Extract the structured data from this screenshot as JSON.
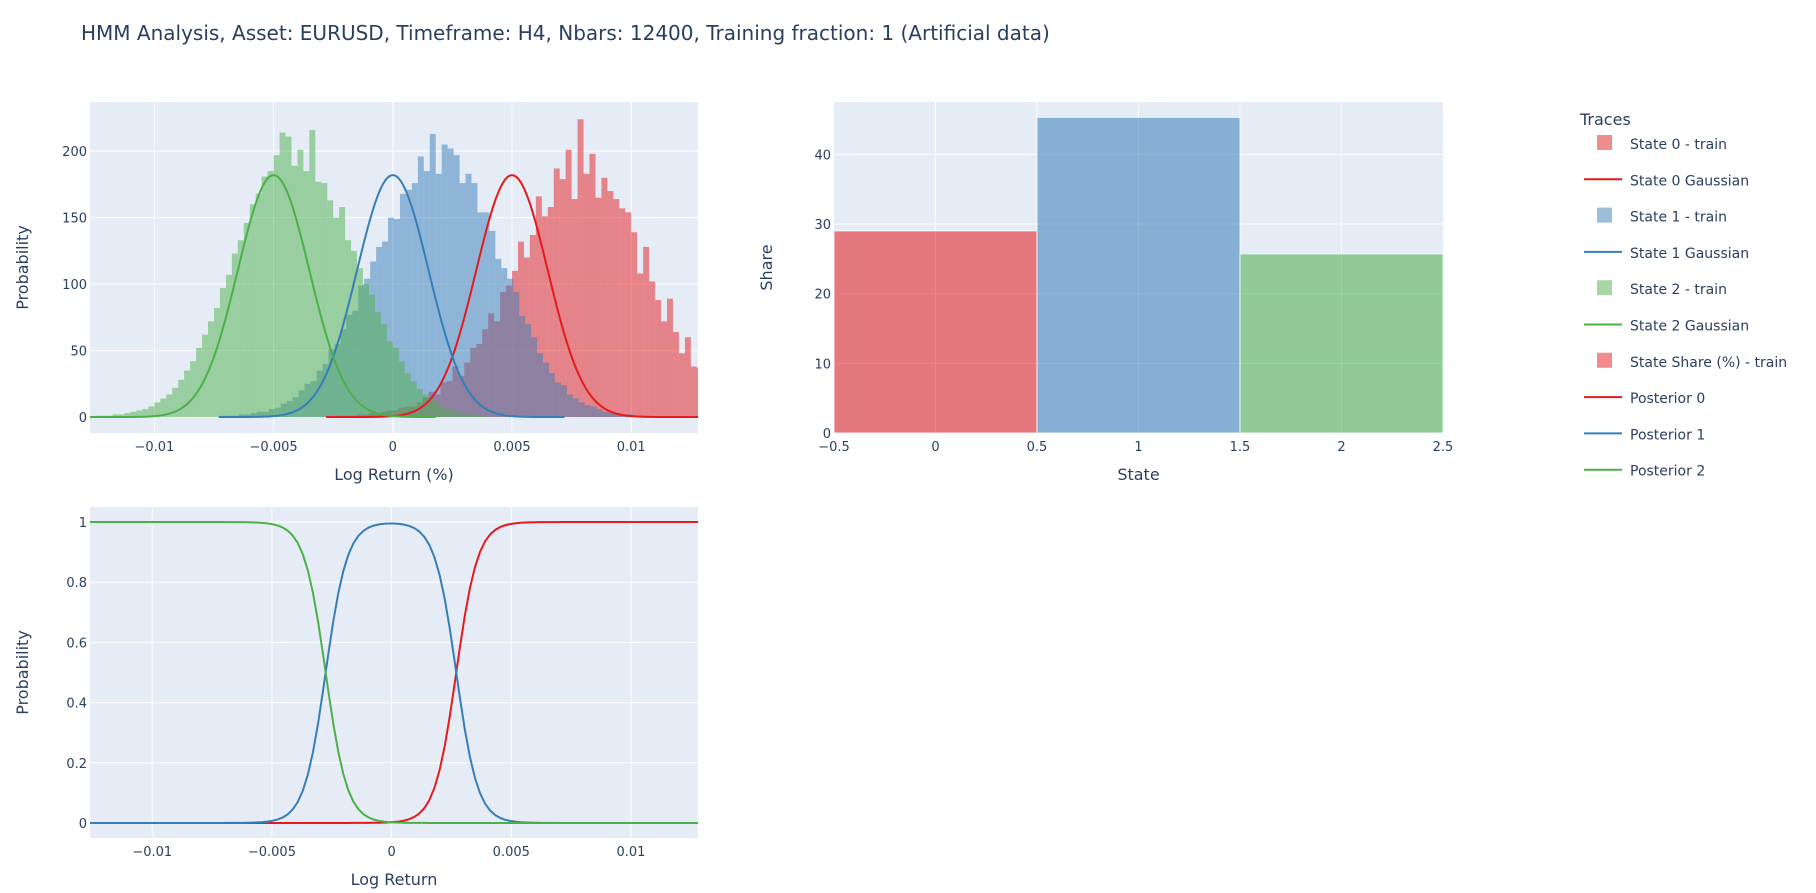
{
  "figure_title": "HMM Analysis, Asset: EURUSD, Timeframe: H4, Nbars: 12400, Training fraction: 1 (Artificial data)",
  "colors": {
    "plot_bg": "#E5ECF6",
    "grid": "#ffffff",
    "text": "#2a3f5f",
    "state0": "#E41A1C",
    "state1": "#377EB8",
    "state2": "#4DAF4A"
  },
  "legend": {
    "title": "Traces",
    "items": [
      {
        "label": "State 0 - train",
        "kind": "box",
        "color": "#E41A1C",
        "opacity": 0.5
      },
      {
        "label": "State 0 Gaussian",
        "kind": "line",
        "color": "#E41A1C"
      },
      {
        "label": "State 1 - train",
        "kind": "box",
        "color": "#377EB8",
        "opacity": 0.5
      },
      {
        "label": "State 1 Gaussian",
        "kind": "line",
        "color": "#377EB8"
      },
      {
        "label": "State 2 - train",
        "kind": "box",
        "color": "#4DAF4A",
        "opacity": 0.5
      },
      {
        "label": "State 2 Gaussian",
        "kind": "line",
        "color": "#4DAF4A"
      },
      {
        "label": "State Share (%) - train",
        "kind": "box",
        "color": "#E41A1C",
        "opacity": 0.5
      },
      {
        "label": "Posterior 0",
        "kind": "line",
        "color": "#E41A1C"
      },
      {
        "label": "Posterior 1",
        "kind": "line",
        "color": "#377EB8"
      },
      {
        "label": "Posterior 2",
        "kind": "line",
        "color": "#4DAF4A"
      }
    ]
  },
  "chart_data": [
    {
      "id": "hist",
      "type": "histogram",
      "title": "",
      "xlabel": "Log Return (%)",
      "ylabel": "Probability",
      "xlim": [
        -0.0127,
        0.0128
      ],
      "ylim": [
        -12,
        237
      ],
      "xticks": [
        -0.01,
        -0.005,
        0,
        0.005,
        0.01
      ],
      "xtick_labels": [
        "−0.01",
        "−0.005",
        "0",
        "0.005",
        "0.01"
      ],
      "yticks": [
        0,
        50,
        100,
        150,
        200
      ],
      "ytick_labels": [
        "0",
        "50",
        "100",
        "150",
        "200"
      ],
      "grid": true,
      "bin_width": 0.00025,
      "series": [
        {
          "name": "State 0 - train",
          "mean": 0.005,
          "std": 0.0015,
          "peak": 182,
          "color": "#E41A1C",
          "opacity": 0.5,
          "bin_start": -0.0025,
          "counts": [
            1,
            1,
            1,
            1,
            2,
            2,
            3,
            2,
            4,
            5,
            5,
            7,
            8,
            8,
            11,
            15,
            19,
            17,
            26,
            27,
            38,
            31,
            41,
            52,
            55,
            66,
            78,
            72,
            94,
            99,
            110,
            132,
            120,
            137,
            166,
            151,
            158,
            187,
            179,
            201,
            164,
            224,
            183,
            198,
            165,
            180,
            170,
            164,
            157,
            154,
            139,
            108,
            128,
            102,
            88,
            72,
            89,
            64,
            48,
            60,
            38,
            37,
            26,
            30,
            24,
            16,
            13,
            12,
            8,
            8,
            5,
            4,
            5,
            4,
            2,
            2,
            1,
            2,
            1,
            1
          ]
        },
        {
          "name": "State 0 Gaussian",
          "mean": 0.005,
          "std": 0.0015,
          "peak": 182,
          "x_range": [
            -0.0028,
            0.0128
          ],
          "color": "#E41A1C"
        },
        {
          "name": "State 1 - train",
          "mean": 0.0,
          "std": 0.0015,
          "peak": 182,
          "color": "#377EB8",
          "opacity": 0.5,
          "bin_start": -0.0072,
          "counts": [
            1,
            1,
            1,
            2,
            2,
            3,
            4,
            4,
            6,
            7,
            10,
            12,
            15,
            20,
            25,
            27,
            35,
            40,
            51,
            55,
            66,
            77,
            80,
            99,
            104,
            117,
            128,
            132,
            150,
            149,
            168,
            171,
            176,
            196,
            185,
            213,
            183,
            205,
            202,
            197,
            176,
            183,
            176,
            154,
            154,
            140,
            119,
            112,
            104,
            94,
            76,
            70,
            60,
            48,
            41,
            33,
            26,
            24,
            17,
            14,
            11,
            9,
            8,
            6,
            4,
            3,
            3,
            2,
            2,
            1
          ]
        },
        {
          "name": "State 1 Gaussian",
          "mean": 0.0,
          "std": 0.0015,
          "peak": 182,
          "x_range": [
            -0.0073,
            0.0072
          ],
          "color": "#377EB8"
        },
        {
          "name": "State 2 - train",
          "mean": -0.005,
          "std": 0.0015,
          "peak": 182,
          "color": "#4DAF4A",
          "opacity": 0.5,
          "bin_start": -0.0125,
          "counts": [
            1,
            1,
            1,
            2,
            2,
            3,
            4,
            5,
            6,
            8,
            11,
            14,
            17,
            22,
            28,
            35,
            42,
            52,
            62,
            72,
            82,
            97,
            107,
            123,
            133,
            146,
            160,
            168,
            181,
            185,
            197,
            214,
            211,
            189,
            201,
            185,
            216,
            177,
            176,
            163,
            150,
            158,
            133,
            125,
            112,
            100,
            92,
            79,
            70,
            57,
            52,
            42,
            33,
            27,
            21,
            17,
            13,
            10,
            7,
            6,
            4,
            3,
            2,
            2,
            1,
            1
          ]
        },
        {
          "name": "State 2 Gaussian",
          "mean": -0.005,
          "std": 0.0015,
          "peak": 182,
          "x_range": [
            -0.0127,
            0.0018
          ],
          "color": "#4DAF4A"
        }
      ]
    },
    {
      "id": "share",
      "type": "bar",
      "title": "",
      "xlabel": "State",
      "ylabel": "Share",
      "xlim": [
        -0.5,
        2.5
      ],
      "ylim": [
        0,
        47.5
      ],
      "xticks": [
        -0.5,
        0,
        0.5,
        1,
        1.5,
        2,
        2.5
      ],
      "xtick_labels": [
        "−0.5",
        "0",
        "0.5",
        "1",
        "1.5",
        "2",
        "2.5"
      ],
      "yticks": [
        0,
        10,
        20,
        30,
        40
      ],
      "ytick_labels": [
        "0",
        "10",
        "20",
        "30",
        "40"
      ],
      "grid": true,
      "categories": [
        0,
        1,
        2
      ],
      "values": [
        29,
        45.3,
        25.7
      ],
      "colors": [
        "#E41A1C",
        "#377EB8",
        "#4DAF4A"
      ],
      "opacity": 0.55,
      "series_name": "State Share (%) - train"
    },
    {
      "id": "posterior",
      "type": "line",
      "title": "",
      "xlabel": "Log Return",
      "ylabel": "Probability",
      "xlim": [
        -0.0126,
        0.0128
      ],
      "ylim": [
        -0.05,
        1.05
      ],
      "xticks": [
        -0.01,
        -0.005,
        0,
        0.005,
        0.01
      ],
      "xtick_labels": [
        "−0.01",
        "−0.005",
        "0",
        "0.005",
        "0.01"
      ],
      "yticks": [
        0,
        0.2,
        0.4,
        0.6,
        0.8,
        1
      ],
      "ytick_labels": [
        "0",
        "0.2",
        "0.4",
        "0.6",
        "0.8",
        "1"
      ],
      "grid": true,
      "model": {
        "means": [
          0.005,
          0.0,
          -0.005
        ],
        "std": 0.0015,
        "weights": [
          0.29,
          0.453,
          0.257
        ]
      },
      "series": [
        {
          "name": "Posterior 0",
          "state": 0,
          "color": "#E41A1C"
        },
        {
          "name": "Posterior 1",
          "state": 1,
          "color": "#377EB8"
        },
        {
          "name": "Posterior 2",
          "state": 2,
          "color": "#4DAF4A"
        }
      ]
    }
  ]
}
